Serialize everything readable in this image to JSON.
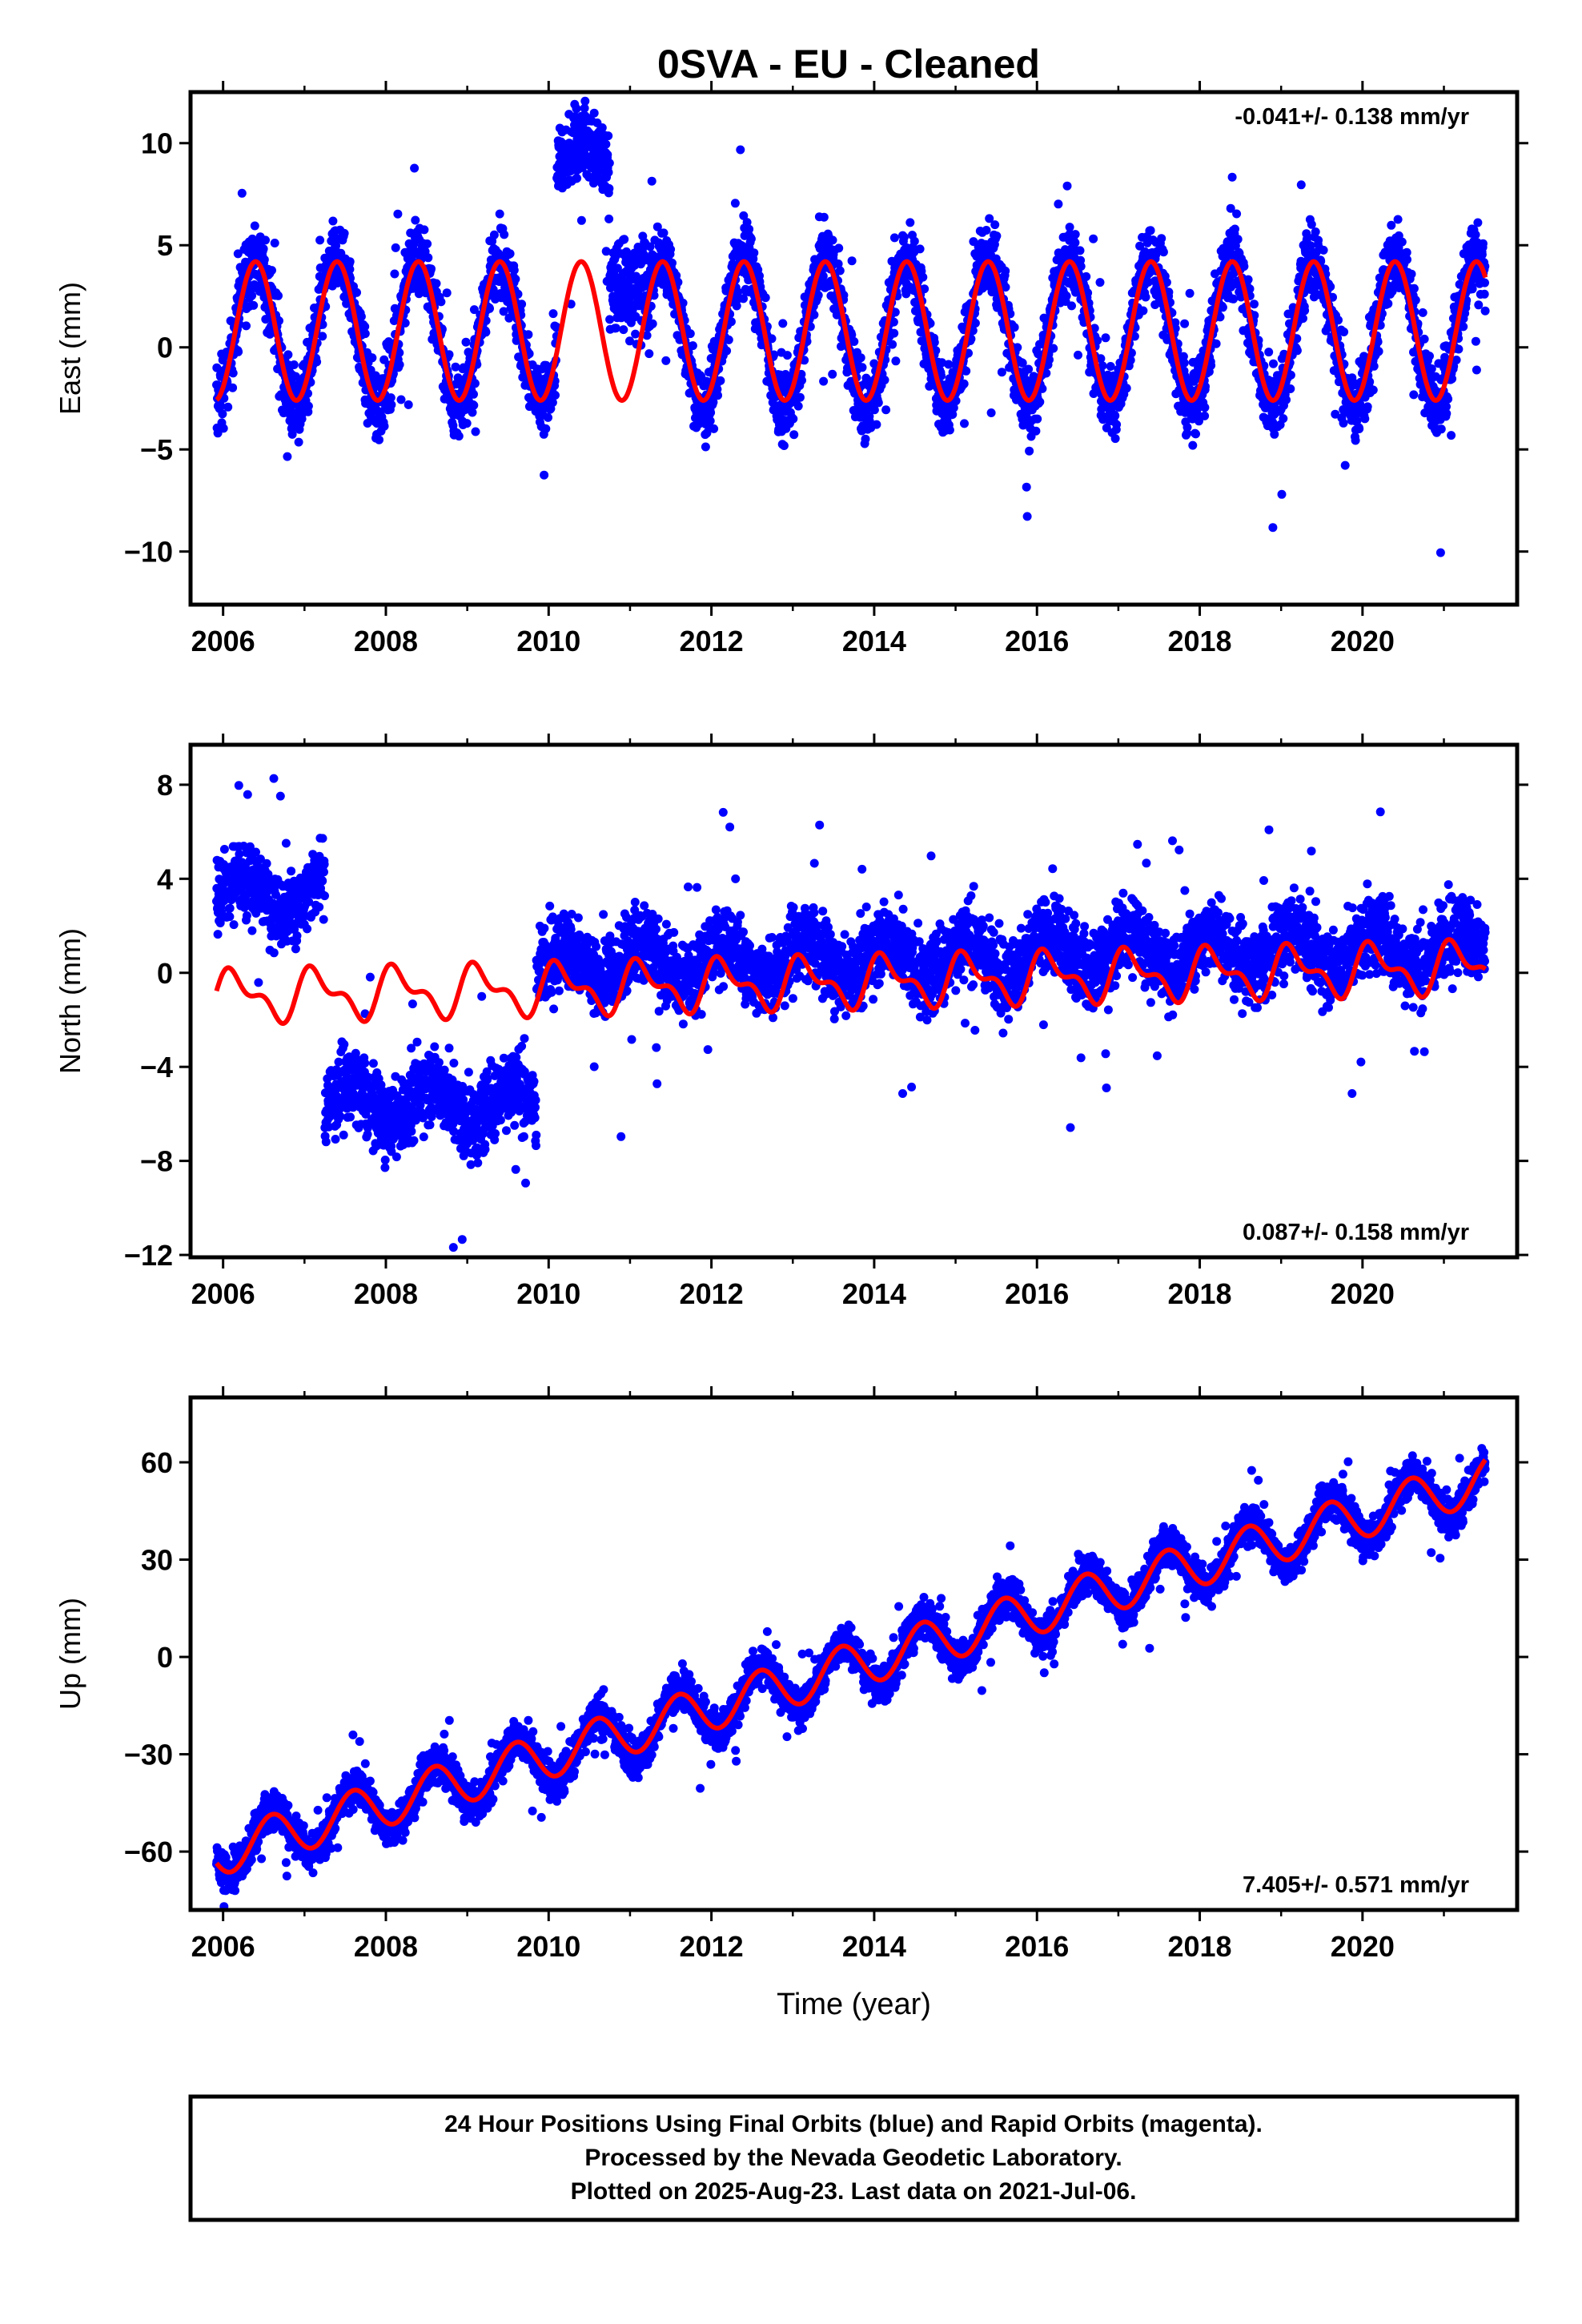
{
  "title": "0SVA  - EU - Cleaned",
  "colors": {
    "data": "#0000ff",
    "model": "#ff0000"
  },
  "chart_data": [
    {
      "type": "scatter",
      "panel": "east",
      "ylabel": "East (mm)",
      "xlabel": "",
      "xlim": [
        2005.6,
        2021.9
      ],
      "ylim": [
        -12.6,
        12.5
      ],
      "xticks": [
        "2006",
        "2008",
        "2010",
        "2012",
        "2014",
        "2016",
        "2018",
        "2020"
      ],
      "yticks": [
        "−10",
        "−5",
        "0",
        "5",
        "10"
      ],
      "ytick_values": [
        -10,
        -5,
        0,
        5,
        10
      ],
      "rate_text": "-0.041+/- 0.138 mm/yr",
      "rate_position": "top-right",
      "series": [
        {
          "kind": "daily positions",
          "color": "#0000ff",
          "x_start": 2005.92,
          "x_end": 2021.51,
          "approx": "seasonal oscillation ±4 mm, jump near 2010.4 up to 12 mm"
        },
        {
          "kind": "model fit",
          "color": "#ff0000",
          "annual_amplitude": 3.4,
          "offset": 0.8
        }
      ]
    },
    {
      "type": "scatter",
      "panel": "north",
      "ylabel": "North (mm)",
      "xlabel": "",
      "xlim": [
        2005.6,
        2021.9
      ],
      "ylim": [
        -12.1,
        9.7
      ],
      "xticks": [
        "2006",
        "2008",
        "2010",
        "2012",
        "2014",
        "2016",
        "2018",
        "2020"
      ],
      "yticks": [
        "8",
        "4",
        "0",
        "−4",
        "−8",
        "−12"
      ],
      "ytick_values": [
        8,
        4,
        0,
        -4,
        -8,
        -12
      ],
      "rate_text": "0.087+/- 0.158 mm/yr",
      "rate_position": "bottom-right",
      "series": [
        {
          "kind": "daily positions",
          "color": "#0000ff",
          "segments": [
            {
              "x": [
                2005.92,
                2007.25
              ],
              "mean": 3.3
            },
            {
              "x": [
                2007.25,
                2009.85
              ],
              "mean": -5.5
            },
            {
              "x": [
                2009.85,
                2021.51
              ],
              "mean": 0.4
            }
          ]
        },
        {
          "kind": "model fit",
          "color": "#ff0000",
          "annual_amplitude": 0.9
        }
      ]
    },
    {
      "type": "scatter",
      "panel": "up",
      "ylabel": "Up (mm)",
      "xlabel": "Time (year)",
      "xlim": [
        2005.6,
        2021.9
      ],
      "ylim": [
        -78,
        80
      ],
      "xticks": [
        "2006",
        "2008",
        "2010",
        "2012",
        "2014",
        "2016",
        "2018",
        "2020"
      ],
      "yticks": [
        "60",
        "30",
        "0",
        "−30",
        "−60"
      ],
      "ytick_values": [
        60,
        30,
        0,
        -30,
        -60
      ],
      "rate_text": "7.405+/- 0.571 mm/yr",
      "rate_position": "bottom-right",
      "series": [
        {
          "kind": "daily positions",
          "color": "#0000ff",
          "trend_mm_per_yr": 7.405,
          "start_value": -58,
          "end_value": 60
        },
        {
          "kind": "model fit",
          "color": "#ff0000",
          "annual_amplitude": 7
        }
      ]
    }
  ],
  "caption": {
    "line1": "24 Hour Positions Using Final Orbits (blue) and Rapid Orbits (magenta).",
    "line2": "Processed by the Nevada Geodetic Laboratory.",
    "line3": "Plotted on 2025-Aug-23. Last data on 2021-Jul-06."
  }
}
